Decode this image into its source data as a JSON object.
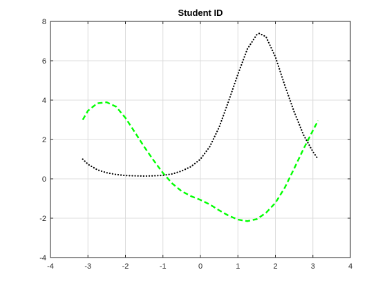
{
  "chart_data": {
    "type": "line",
    "title": "Student ID",
    "xlabel": "",
    "ylabel": "",
    "xlim": [
      -4,
      4
    ],
    "ylim": [
      -4,
      8
    ],
    "xticks": [
      -4,
      -3,
      -2,
      -1,
      0,
      1,
      2,
      3,
      4
    ],
    "yticks": [
      -4,
      -2,
      0,
      2,
      4,
      6,
      8
    ],
    "grid": true,
    "colors": {
      "dotted_series": "#000000",
      "dashed_series": "#00ff00",
      "grid": "#dcdcdc",
      "axes": "#262626"
    },
    "series": [
      {
        "style": "dotted",
        "color": "#000000",
        "x": [
          -3.14,
          -3.0,
          -2.75,
          -2.5,
          -2.25,
          -2.0,
          -1.75,
          -1.5,
          -1.25,
          -1.0,
          -0.75,
          -0.5,
          -0.25,
          0.0,
          0.25,
          0.5,
          0.75,
          1.0,
          1.25,
          1.5,
          1.57,
          1.75,
          2.0,
          2.25,
          2.5,
          2.75,
          3.0,
          3.14
        ],
        "y": [
          1.0,
          0.74,
          0.46,
          0.31,
          0.22,
          0.17,
          0.15,
          0.14,
          0.15,
          0.18,
          0.25,
          0.4,
          0.62,
          1.0,
          1.64,
          2.62,
          3.94,
          5.32,
          6.59,
          7.32,
          7.39,
          7.22,
          6.2,
          4.75,
          3.41,
          2.23,
          1.38,
          1.0
        ]
      },
      {
        "style": "dashed",
        "color": "#00ff00",
        "x": [
          -3.14,
          -3.0,
          -2.75,
          -2.5,
          -2.25,
          -2.0,
          -1.75,
          -1.5,
          -1.25,
          -1.0,
          -0.75,
          -0.5,
          -0.25,
          0.0,
          0.25,
          0.5,
          0.75,
          1.0,
          1.25,
          1.5,
          1.75,
          2.0,
          2.25,
          2.5,
          2.75,
          3.0,
          3.14
        ],
        "y": [
          3.0,
          3.46,
          3.84,
          3.89,
          3.67,
          3.1,
          2.37,
          1.63,
          0.94,
          0.3,
          -0.24,
          -0.63,
          -0.88,
          -1.07,
          -1.3,
          -1.6,
          -1.87,
          -2.07,
          -2.15,
          -2.05,
          -1.73,
          -1.22,
          -0.45,
          0.52,
          1.52,
          2.46,
          2.96
        ]
      }
    ]
  }
}
